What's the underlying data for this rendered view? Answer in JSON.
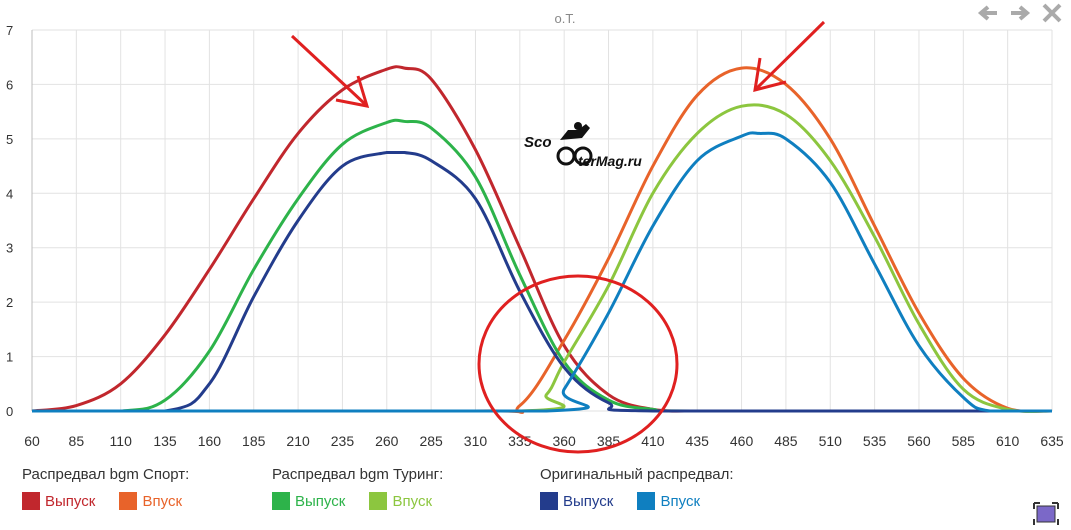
{
  "header": {
    "title": "о.Т."
  },
  "watermark": {
    "text_left": "Sco",
    "text_right": "terMag.ru"
  },
  "legend": {
    "groups": [
      {
        "title": "Распредвал bgm Спорт:",
        "items": [
          {
            "label": "Выпуск",
            "color": "#c1272d"
          },
          {
            "label": "Впуск",
            "color": "#e8632a"
          }
        ]
      },
      {
        "title": "Распредвал bgm Туринг:",
        "items": [
          {
            "label": "Выпуск",
            "color": "#2db34a"
          },
          {
            "label": "Впуск",
            "color": "#8cc63f"
          }
        ]
      },
      {
        "title": "Оригинальный распредвал:",
        "items": [
          {
            "label": "Выпуск",
            "color": "#233c8c"
          },
          {
            "label": "Впуск",
            "color": "#0f7fc0"
          }
        ]
      }
    ]
  },
  "nav": {
    "back_icon": "arrow-left-icon",
    "forward_icon": "arrow-right-icon",
    "close_icon": "close-icon"
  },
  "annotations": {
    "arrow_color": "#e02020",
    "circle_color": "#e02020"
  },
  "chart_data": {
    "type": "line",
    "title": "о.Т.",
    "xlabel": "",
    "ylabel": "",
    "xlim": [
      60,
      635
    ],
    "ylim": [
      0,
      7
    ],
    "x_ticks": [
      60,
      85,
      110,
      135,
      160,
      185,
      210,
      235,
      260,
      285,
      310,
      335,
      360,
      385,
      410,
      435,
      460,
      485,
      510,
      535,
      560,
      585,
      610,
      635
    ],
    "y_ticks": [
      0,
      1,
      2,
      3,
      4,
      5,
      6,
      7
    ],
    "grid": true,
    "legend_position": "bottom",
    "series": [
      {
        "group": "Распредвал bgm Спорт:",
        "name": "Выпуск",
        "color": "#c1272d",
        "x": [
          60,
          85,
          110,
          135,
          160,
          185,
          210,
          235,
          260,
          270,
          285,
          310,
          335,
          360,
          385,
          410,
          435,
          460,
          635
        ],
        "y": [
          0,
          0.1,
          0.5,
          1.4,
          2.6,
          3.9,
          5.1,
          5.9,
          6.28,
          6.3,
          6.1,
          4.8,
          3.0,
          1.2,
          0.3,
          0.03,
          0,
          0,
          0
        ]
      },
      {
        "group": "Распредвал bgm Спорт:",
        "name": "Впуск",
        "color": "#e8632a",
        "x": [
          60,
          310,
          335,
          360,
          385,
          410,
          435,
          460,
          485,
          510,
          535,
          560,
          585,
          610,
          635
        ],
        "y": [
          0,
          0,
          0.1,
          1.3,
          2.8,
          4.5,
          5.8,
          6.3,
          6.0,
          5.0,
          3.4,
          1.8,
          0.6,
          0.05,
          0
        ]
      },
      {
        "group": "Распредвал bgm Туринг:",
        "name": "Выпуск",
        "color": "#2db34a",
        "x": [
          60,
          110,
          135,
          160,
          185,
          210,
          235,
          260,
          270,
          285,
          310,
          335,
          360,
          385,
          410,
          435,
          635
        ],
        "y": [
          0,
          0,
          0.2,
          1.1,
          2.6,
          3.9,
          4.9,
          5.3,
          5.32,
          5.2,
          4.3,
          2.5,
          0.9,
          0.2,
          0.03,
          0,
          0
        ]
      },
      {
        "group": "Распредвал bgm Туринг:",
        "name": "Впуск",
        "color": "#8cc63f",
        "x": [
          60,
          335,
          350,
          360,
          385,
          410,
          435,
          460,
          485,
          510,
          535,
          560,
          585,
          610,
          635
        ],
        "y": [
          0,
          0,
          0.3,
          0.9,
          2.3,
          4.0,
          5.1,
          5.6,
          5.45,
          4.6,
          3.2,
          1.6,
          0.4,
          0.03,
          0
        ]
      },
      {
        "group": "Оригинальный распредвал:",
        "name": "Выпуск",
        "color": "#233c8c",
        "x": [
          60,
          135,
          160,
          185,
          210,
          235,
          260,
          270,
          285,
          310,
          335,
          360,
          385,
          410,
          635
        ],
        "y": [
          0,
          0,
          0.5,
          2.1,
          3.5,
          4.5,
          4.75,
          4.75,
          4.6,
          3.9,
          2.2,
          0.8,
          0.15,
          0,
          0
        ]
      },
      {
        "group": "Оригинальный распредвал:",
        "name": "Впуск",
        "color": "#0f7fc0",
        "x": [
          60,
          350,
          360,
          385,
          410,
          435,
          460,
          470,
          485,
          510,
          535,
          560,
          585,
          600,
          635
        ],
        "y": [
          0,
          0,
          0.4,
          1.8,
          3.4,
          4.6,
          5.05,
          5.1,
          5.0,
          4.2,
          2.7,
          1.2,
          0.25,
          0,
          0
        ]
      }
    ]
  }
}
